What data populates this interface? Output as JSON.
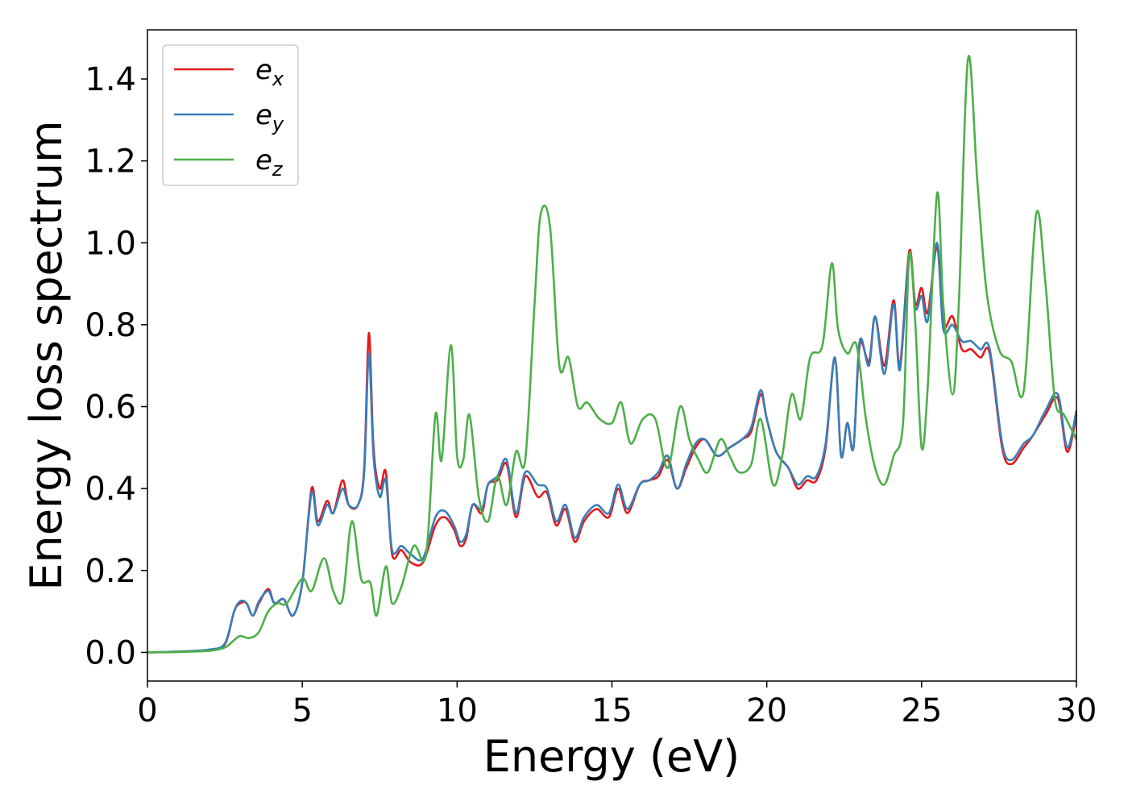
{
  "chart_data": {
    "type": "line",
    "xlabel": "Energy (eV)",
    "ylabel": "Energy loss spectrum",
    "xlim": [
      0,
      30
    ],
    "ylim": [
      -0.07,
      1.52
    ],
    "xticks": [
      0,
      5,
      10,
      15,
      20,
      25,
      30
    ],
    "yticks": [
      0.0,
      0.2,
      0.4,
      0.6,
      0.8,
      1.0,
      1.2,
      1.4
    ],
    "grid": false,
    "legend_position": "top-left",
    "series": [
      {
        "name": "e_x",
        "label_base": "e",
        "label_sub": "x",
        "color": "#e41a1c",
        "x": [
          0,
          1,
          2,
          2.5,
          2.8,
          3.0,
          3.2,
          3.4,
          3.6,
          3.9,
          4.1,
          4.4,
          4.7,
          5.0,
          5.3,
          5.5,
          5.8,
          6.0,
          6.3,
          6.5,
          6.8,
          7.0,
          7.15,
          7.3,
          7.5,
          7.7,
          7.9,
          8.2,
          8.5,
          8.9,
          9.3,
          9.6,
          9.9,
          10.1,
          10.3,
          10.5,
          10.8,
          11.0,
          11.3,
          11.6,
          11.9,
          12.2,
          12.6,
          12.9,
          13.2,
          13.5,
          13.8,
          14.1,
          14.5,
          14.9,
          15.2,
          15.5,
          15.9,
          16.2,
          16.5,
          16.8,
          17.1,
          17.4,
          17.7,
          18.0,
          18.4,
          18.8,
          19.2,
          19.5,
          19.8,
          20.0,
          20.3,
          20.7,
          21.0,
          21.3,
          21.6,
          21.9,
          22.2,
          22.4,
          22.6,
          22.8,
          23.0,
          23.3,
          23.5,
          23.8,
          24.1,
          24.3,
          24.6,
          24.8,
          25.0,
          25.2,
          25.5,
          25.7,
          26.0,
          26.3,
          26.6,
          26.9,
          27.2,
          27.6,
          27.9,
          28.3,
          28.6,
          29.0,
          29.4,
          29.7,
          30.0
        ],
        "values": [
          0,
          0.002,
          0.006,
          0.02,
          0.1,
          0.12,
          0.12,
          0.09,
          0.12,
          0.155,
          0.12,
          0.13,
          0.09,
          0.17,
          0.4,
          0.32,
          0.37,
          0.34,
          0.42,
          0.36,
          0.36,
          0.45,
          0.78,
          0.5,
          0.4,
          0.44,
          0.24,
          0.25,
          0.22,
          0.22,
          0.31,
          0.33,
          0.3,
          0.26,
          0.28,
          0.36,
          0.34,
          0.41,
          0.42,
          0.46,
          0.33,
          0.43,
          0.38,
          0.39,
          0.31,
          0.35,
          0.27,
          0.32,
          0.35,
          0.33,
          0.4,
          0.34,
          0.41,
          0.42,
          0.43,
          0.47,
          0.4,
          0.45,
          0.5,
          0.52,
          0.48,
          0.5,
          0.52,
          0.54,
          0.63,
          0.57,
          0.49,
          0.45,
          0.4,
          0.42,
          0.42,
          0.5,
          0.72,
          0.48,
          0.56,
          0.5,
          0.75,
          0.71,
          0.82,
          0.7,
          0.86,
          0.7,
          0.98,
          0.85,
          0.89,
          0.83,
          0.99,
          0.8,
          0.82,
          0.74,
          0.74,
          0.72,
          0.73,
          0.5,
          0.46,
          0.5,
          0.53,
          0.58,
          0.62,
          0.49,
          0.58
        ]
      },
      {
        "name": "e_y",
        "label_base": "e",
        "label_sub": "y",
        "color": "#377eb8",
        "x": [
          0,
          1,
          2,
          2.5,
          2.8,
          3.0,
          3.2,
          3.4,
          3.6,
          3.9,
          4.1,
          4.4,
          4.7,
          5.0,
          5.3,
          5.5,
          5.8,
          6.0,
          6.3,
          6.5,
          6.8,
          7.0,
          7.15,
          7.3,
          7.5,
          7.7,
          7.9,
          8.2,
          8.5,
          8.9,
          9.3,
          9.6,
          9.9,
          10.1,
          10.3,
          10.5,
          10.8,
          11.0,
          11.3,
          11.6,
          11.9,
          12.2,
          12.6,
          12.9,
          13.2,
          13.5,
          13.8,
          14.1,
          14.5,
          14.9,
          15.2,
          15.5,
          15.9,
          16.2,
          16.5,
          16.8,
          17.1,
          17.4,
          17.7,
          18.0,
          18.4,
          18.8,
          19.2,
          19.5,
          19.8,
          20.0,
          20.3,
          20.7,
          21.0,
          21.3,
          21.6,
          21.9,
          22.2,
          22.4,
          22.6,
          22.8,
          23.0,
          23.3,
          23.5,
          23.8,
          24.1,
          24.3,
          24.6,
          24.8,
          25.0,
          25.2,
          25.5,
          25.7,
          26.0,
          26.3,
          26.6,
          26.9,
          27.2,
          27.6,
          27.9,
          28.3,
          28.6,
          29.0,
          29.4,
          29.7,
          30.0
        ],
        "values": [
          0,
          0.002,
          0.007,
          0.022,
          0.1,
          0.125,
          0.12,
          0.09,
          0.125,
          0.15,
          0.12,
          0.13,
          0.09,
          0.17,
          0.39,
          0.31,
          0.36,
          0.34,
          0.4,
          0.36,
          0.36,
          0.44,
          0.73,
          0.48,
          0.38,
          0.42,
          0.25,
          0.26,
          0.24,
          0.23,
          0.33,
          0.345,
          0.31,
          0.27,
          0.29,
          0.36,
          0.35,
          0.41,
          0.43,
          0.47,
          0.34,
          0.44,
          0.41,
          0.4,
          0.32,
          0.36,
          0.28,
          0.33,
          0.36,
          0.34,
          0.41,
          0.35,
          0.41,
          0.42,
          0.44,
          0.48,
          0.4,
          0.46,
          0.51,
          0.52,
          0.48,
          0.5,
          0.52,
          0.55,
          0.64,
          0.57,
          0.49,
          0.45,
          0.41,
          0.43,
          0.43,
          0.51,
          0.72,
          0.48,
          0.56,
          0.5,
          0.76,
          0.7,
          0.82,
          0.68,
          0.85,
          0.69,
          0.97,
          0.84,
          0.87,
          0.81,
          1.0,
          0.79,
          0.8,
          0.76,
          0.76,
          0.74,
          0.74,
          0.51,
          0.47,
          0.51,
          0.53,
          0.59,
          0.63,
          0.5,
          0.59
        ]
      },
      {
        "name": "e_z",
        "label_base": "e",
        "label_sub": "z",
        "color": "#4daf4a",
        "x": [
          0,
          1,
          2,
          2.5,
          2.8,
          3.0,
          3.3,
          3.6,
          3.9,
          4.2,
          4.5,
          5.0,
          5.3,
          5.7,
          6.0,
          6.3,
          6.6,
          6.9,
          7.2,
          7.4,
          7.7,
          7.9,
          8.2,
          8.6,
          9.0,
          9.3,
          9.5,
          9.8,
          10.0,
          10.2,
          10.4,
          10.7,
          11.0,
          11.3,
          11.6,
          11.9,
          12.2,
          12.5,
          12.7,
          13.0,
          13.3,
          13.6,
          13.9,
          14.2,
          14.6,
          15.0,
          15.3,
          15.6,
          16.0,
          16.4,
          16.8,
          17.2,
          17.5,
          17.8,
          18.1,
          18.5,
          18.8,
          19.1,
          19.5,
          19.8,
          20.2,
          20.5,
          20.8,
          21.1,
          21.4,
          21.8,
          22.1,
          22.3,
          22.6,
          22.9,
          23.2,
          23.5,
          23.8,
          24.1,
          24.4,
          24.6,
          24.8,
          25.0,
          25.2,
          25.5,
          25.7,
          26.0,
          26.2,
          26.5,
          26.8,
          27.1,
          27.5,
          27.9,
          28.3,
          28.7,
          29.0,
          29.3,
          29.6,
          30.0
        ],
        "values": [
          0,
          0.001,
          0.004,
          0.012,
          0.03,
          0.04,
          0.035,
          0.05,
          0.1,
          0.12,
          0.12,
          0.18,
          0.15,
          0.23,
          0.15,
          0.13,
          0.32,
          0.18,
          0.17,
          0.09,
          0.21,
          0.12,
          0.16,
          0.26,
          0.24,
          0.58,
          0.47,
          0.75,
          0.48,
          0.47,
          0.58,
          0.38,
          0.32,
          0.43,
          0.36,
          0.49,
          0.47,
          0.85,
          1.07,
          1.04,
          0.7,
          0.72,
          0.6,
          0.61,
          0.57,
          0.56,
          0.61,
          0.51,
          0.57,
          0.57,
          0.45,
          0.6,
          0.52,
          0.47,
          0.44,
          0.52,
          0.48,
          0.44,
          0.46,
          0.57,
          0.41,
          0.48,
          0.63,
          0.57,
          0.72,
          0.75,
          0.95,
          0.79,
          0.73,
          0.75,
          0.57,
          0.45,
          0.41,
          0.48,
          0.56,
          0.97,
          0.8,
          0.5,
          0.65,
          1.12,
          0.85,
          0.63,
          0.85,
          1.45,
          1.15,
          0.88,
          0.74,
          0.71,
          0.64,
          1.07,
          0.9,
          0.62,
          0.58,
          0.52
        ]
      }
    ]
  }
}
